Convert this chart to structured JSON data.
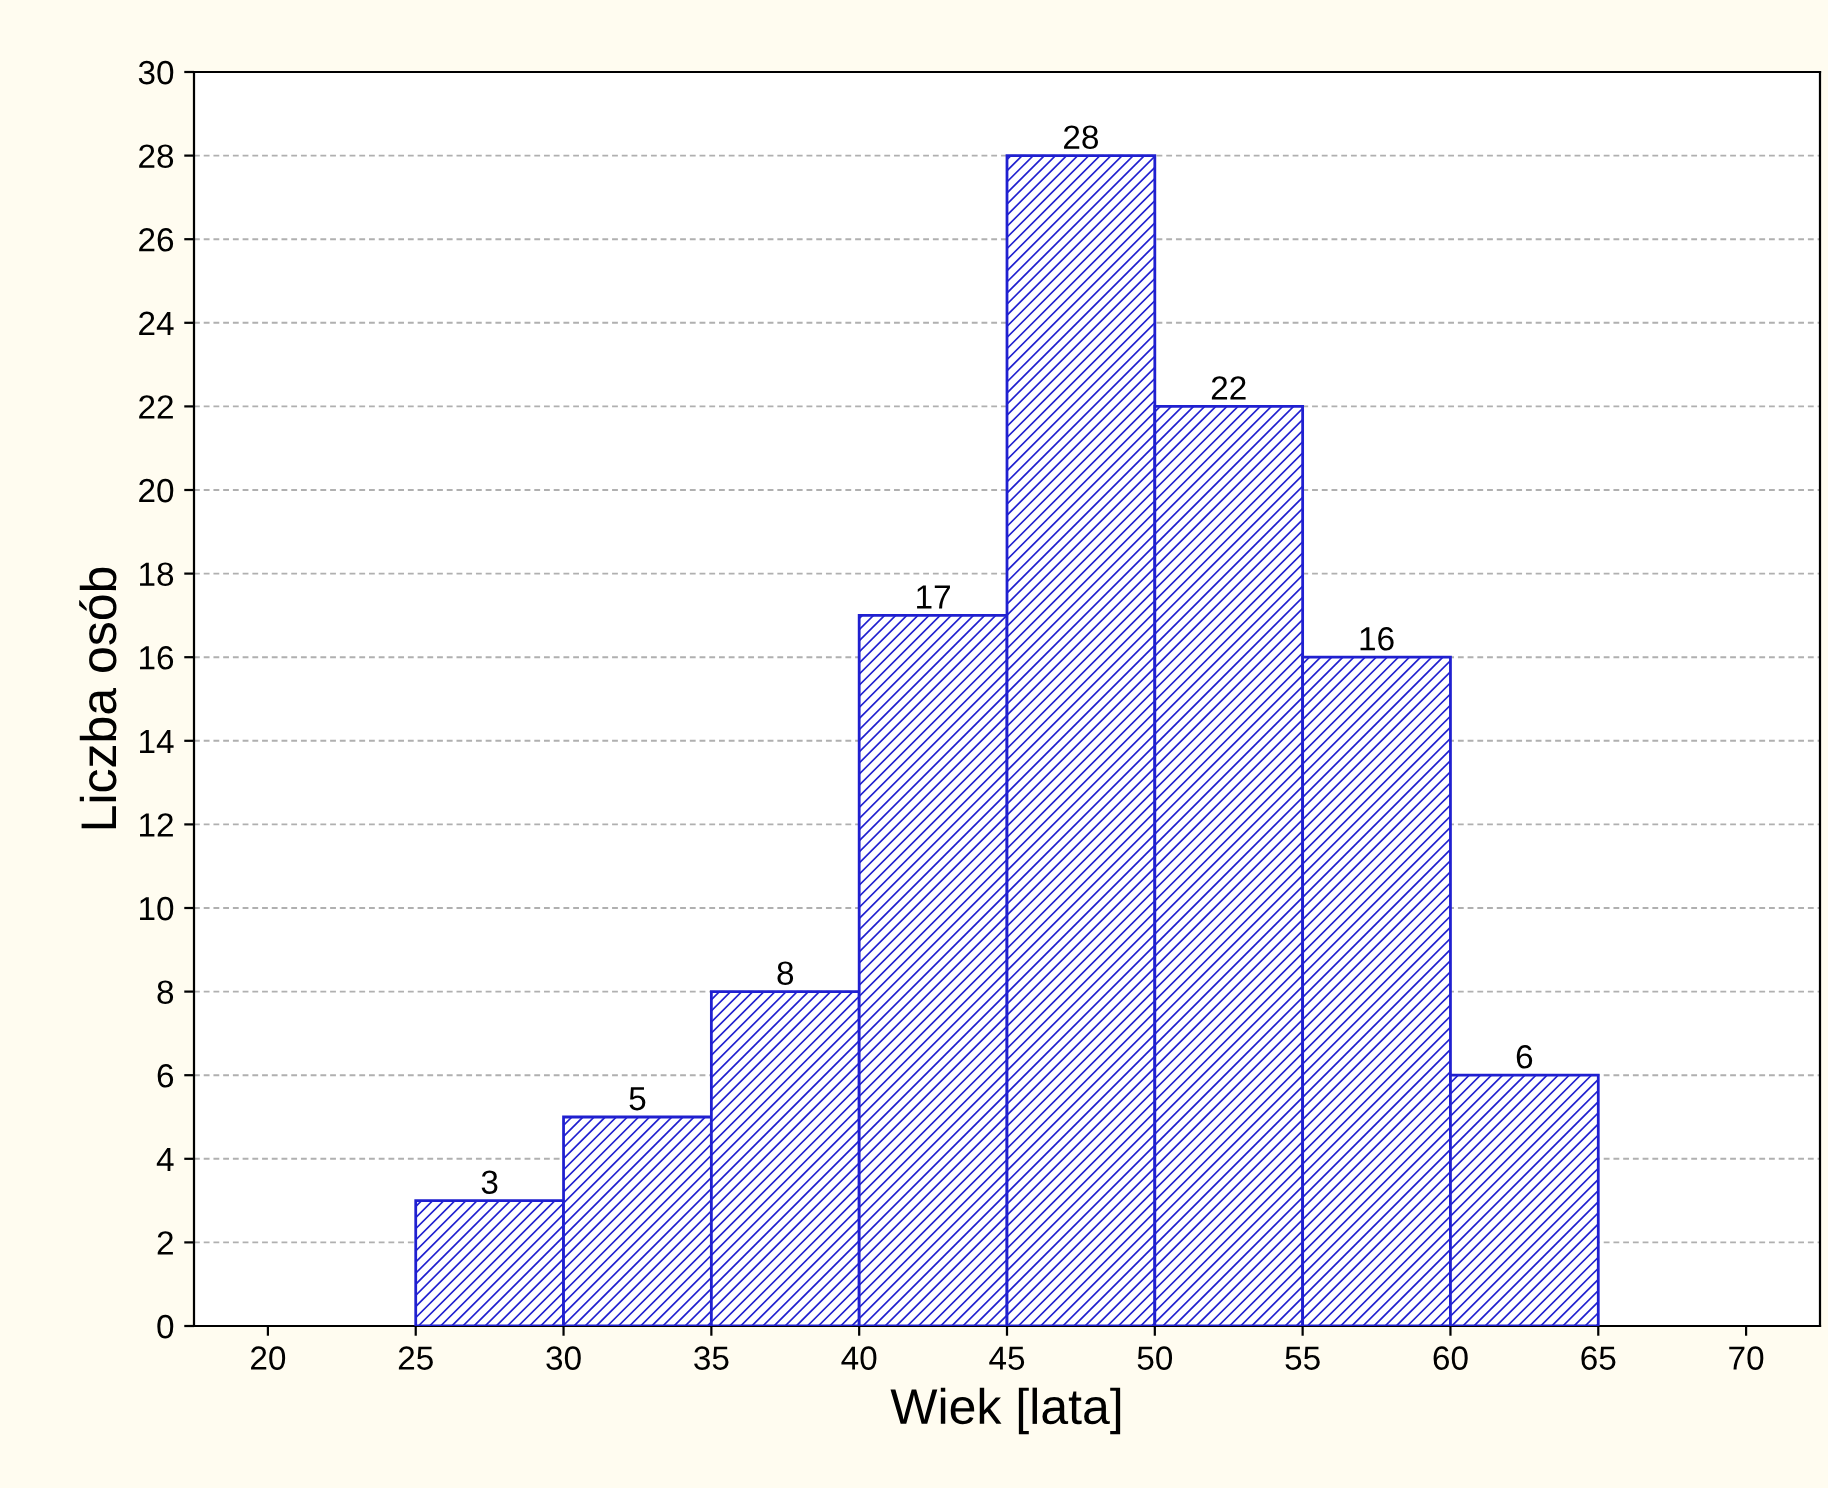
{
  "chart_data": {
    "type": "histogram",
    "xlabel": "Wiek [lata]",
    "ylabel": "Liczba osób",
    "bins": [
      25,
      30,
      35,
      40,
      45,
      50,
      55,
      60,
      65
    ],
    "values": [
      3,
      5,
      8,
      17,
      28,
      22,
      16,
      6
    ],
    "color": "#2020d0",
    "xlim": [
      17.5,
      72.5
    ],
    "xticks": [
      20,
      25,
      30,
      35,
      40,
      45,
      50,
      55,
      60,
      65,
      70
    ],
    "ylim": [
      0,
      30
    ],
    "yticks": [
      0,
      2,
      4,
      6,
      8,
      10,
      12,
      14,
      16,
      18,
      20,
      22,
      24,
      26,
      28,
      30
    ],
    "grid": "y",
    "data_labels": true
  }
}
